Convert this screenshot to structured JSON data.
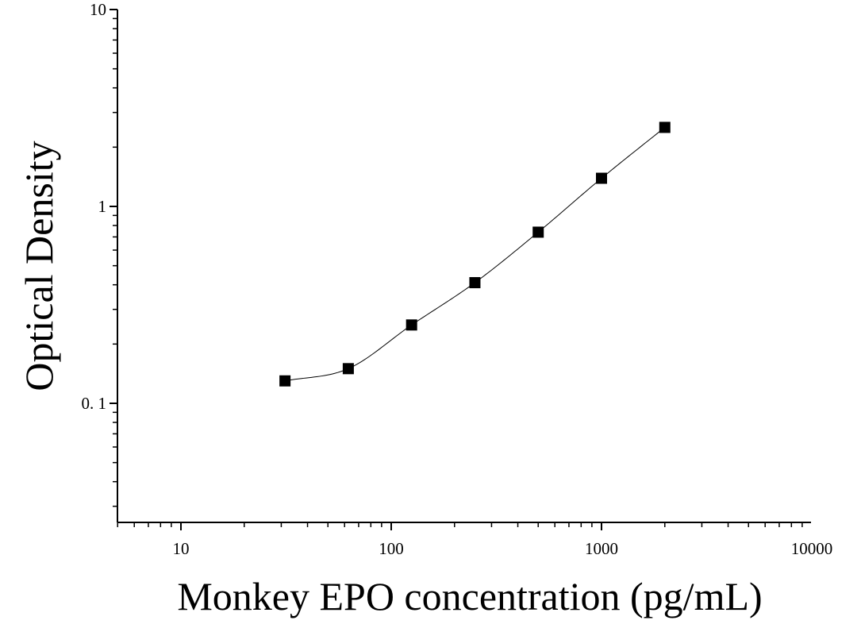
{
  "chart_data": {
    "type": "scatter",
    "title": "",
    "xlabel": "Monkey EPO concentration (pg/mL)",
    "ylabel": "Optical Density",
    "x_scale": "log",
    "y_scale": "log",
    "xlim": [
      5,
      10000
    ],
    "ylim": [
      0.025,
      10
    ],
    "x_ticks": [
      {
        "value": 10,
        "label": "10"
      },
      {
        "value": 100,
        "label": "100"
      },
      {
        "value": 1000,
        "label": "1000"
      },
      {
        "value": 10000,
        "label": "10000"
      }
    ],
    "y_ticks": [
      {
        "value": 0.1,
        "label": "0. 1"
      },
      {
        "value": 1,
        "label": "1"
      },
      {
        "value": 10,
        "label": "10"
      }
    ],
    "grid": false,
    "marker": "square",
    "marker_color": "#000000",
    "curve_color": "#000000",
    "series": [
      {
        "x": [
          31.25,
          62.5,
          125,
          250,
          500,
          1000,
          2000
        ],
        "y": [
          0.13,
          0.15,
          0.25,
          0.41,
          0.74,
          1.39,
          2.52
        ]
      }
    ]
  }
}
